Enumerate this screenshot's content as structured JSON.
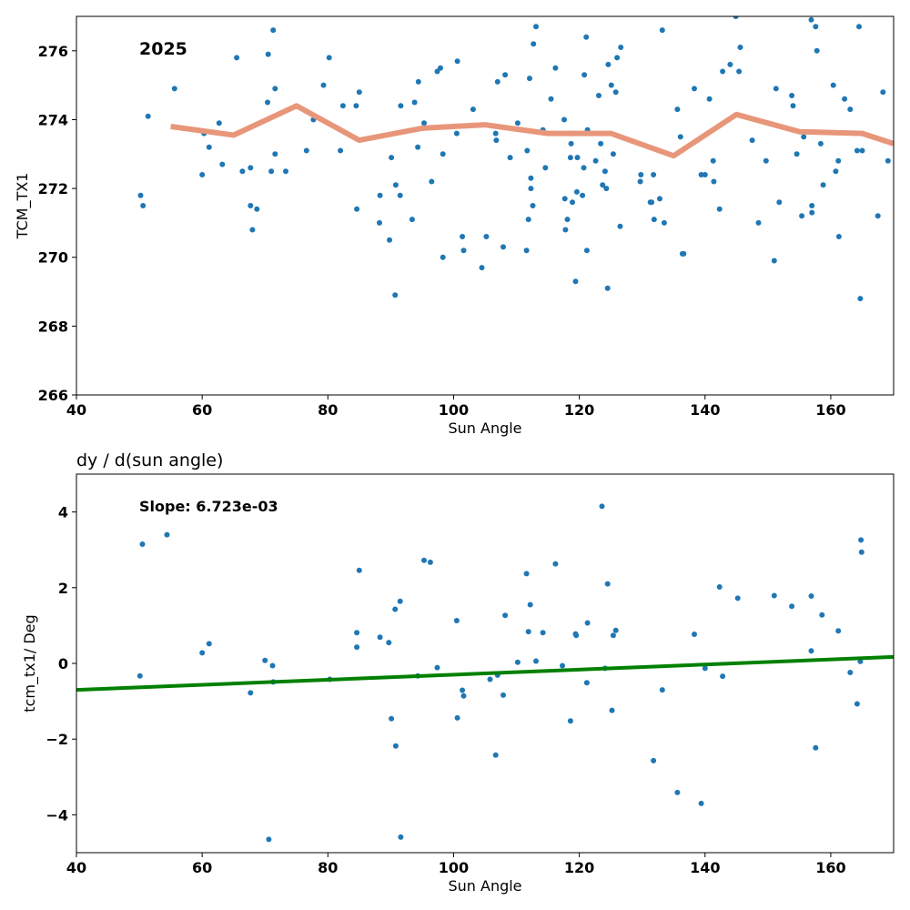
{
  "chart_data": [
    {
      "type": "scatter",
      "title": "",
      "annotation": "2025",
      "xlabel": "Sun Angle",
      "ylabel": "TCM_TX1",
      "xlim": [
        40,
        170
      ],
      "ylim": [
        266,
        277
      ],
      "xticks": [
        40,
        60,
        80,
        100,
        120,
        140,
        160
      ],
      "yticks": [
        266,
        268,
        270,
        272,
        274,
        276
      ],
      "grid": false,
      "colors": {
        "points": "#1f77b4",
        "line": "#e8967a"
      },
      "series": [
        {
          "kind": "scatter",
          "points": [
            [
              50.2,
              271.8
            ],
            [
              50.6,
              271.5
            ],
            [
              51.4,
              274.1
            ],
            [
              55.6,
              274.9
            ],
            [
              60.0,
              272.4
            ],
            [
              60.3,
              273.6
            ],
            [
              61.1,
              273.2
            ],
            [
              62.7,
              273.9
            ],
            [
              63.2,
              272.7
            ],
            [
              65.5,
              275.8
            ],
            [
              66.4,
              272.5
            ],
            [
              67.7,
              272.6
            ],
            [
              67.7,
              271.5
            ],
            [
              68.0,
              270.8
            ],
            [
              68.7,
              271.4
            ],
            [
              70.4,
              274.5
            ],
            [
              70.5,
              275.9
            ],
            [
              71.0,
              272.5
            ],
            [
              71.3,
              276.6
            ],
            [
              71.6,
              274.9
            ],
            [
              71.6,
              273.0
            ],
            [
              73.3,
              272.5
            ],
            [
              76.6,
              273.1
            ],
            [
              77.7,
              274.0
            ],
            [
              79.3,
              275.0
            ],
            [
              80.2,
              275.8
            ],
            [
              82.0,
              273.1
            ],
            [
              82.4,
              274.4
            ],
            [
              84.5,
              274.4
            ],
            [
              84.6,
              271.4
            ],
            [
              85.0,
              274.8
            ],
            [
              88.2,
              271.0
            ],
            [
              88.3,
              271.8
            ],
            [
              89.8,
              270.5
            ],
            [
              90.1,
              272.9
            ],
            [
              90.7,
              268.9
            ],
            [
              90.8,
              272.1
            ],
            [
              91.5,
              271.8
            ],
            [
              91.6,
              274.4
            ],
            [
              93.4,
              271.1
            ],
            [
              93.8,
              274.5
            ],
            [
              94.3,
              273.2
            ],
            [
              94.4,
              275.1
            ],
            [
              95.3,
              273.9
            ],
            [
              96.5,
              272.2
            ],
            [
              97.4,
              275.4
            ],
            [
              97.9,
              275.5
            ],
            [
              98.3,
              270.0
            ],
            [
              98.3,
              273.0
            ],
            [
              100.5,
              273.6
            ],
            [
              100.6,
              275.7
            ],
            [
              101.4,
              270.6
            ],
            [
              101.6,
              270.2
            ],
            [
              103.1,
              274.3
            ],
            [
              104.5,
              269.7
            ],
            [
              105.2,
              270.6
            ],
            [
              106.7,
              273.6
            ],
            [
              106.8,
              273.4
            ],
            [
              107.0,
              275.1
            ],
            [
              107.9,
              270.3
            ],
            [
              108.2,
              275.3
            ],
            [
              109.0,
              272.9
            ],
            [
              110.2,
              273.9
            ],
            [
              111.6,
              270.2
            ],
            [
              111.7,
              273.1
            ],
            [
              111.9,
              271.1
            ],
            [
              112.1,
              275.2
            ],
            [
              112.3,
              272.0
            ],
            [
              112.3,
              272.3
            ],
            [
              112.6,
              271.5
            ],
            [
              112.7,
              276.2
            ],
            [
              113.1,
              276.7
            ],
            [
              114.2,
              273.7
            ],
            [
              114.6,
              272.6
            ],
            [
              115.5,
              274.6
            ],
            [
              116.2,
              275.5
            ],
            [
              117.6,
              274.0
            ],
            [
              117.7,
              271.7
            ],
            [
              117.8,
              270.8
            ],
            [
              118.1,
              271.1
            ],
            [
              118.5,
              273.6
            ],
            [
              118.6,
              272.9
            ],
            [
              118.7,
              273.3
            ],
            [
              118.9,
              271.6
            ],
            [
              119.4,
              269.3
            ],
            [
              119.6,
              271.9
            ],
            [
              119.7,
              272.9
            ],
            [
              120.5,
              271.8
            ],
            [
              120.7,
              272.6
            ],
            [
              120.8,
              275.3
            ],
            [
              121.1,
              276.4
            ],
            [
              121.2,
              270.2
            ],
            [
              121.3,
              273.7
            ],
            [
              122.6,
              272.8
            ],
            [
              123.1,
              274.7
            ],
            [
              123.4,
              273.3
            ],
            [
              123.7,
              272.1
            ],
            [
              124.1,
              272.5
            ],
            [
              124.3,
              272.0
            ],
            [
              124.5,
              269.1
            ],
            [
              124.6,
              275.6
            ],
            [
              125.1,
              275.0
            ],
            [
              125.4,
              273.0
            ],
            [
              125.8,
              274.8
            ],
            [
              126.0,
              275.8
            ],
            [
              126.5,
              270.9
            ],
            [
              126.6,
              276.1
            ],
            [
              129.7,
              272.2
            ],
            [
              129.8,
              272.4
            ],
            [
              131.3,
              271.6
            ],
            [
              131.5,
              271.6
            ],
            [
              131.8,
              272.4
            ],
            [
              131.9,
              271.1
            ],
            [
              132.8,
              271.7
            ],
            [
              133.2,
              276.6
            ],
            [
              133.5,
              271.0
            ],
            [
              135.6,
              274.3
            ],
            [
              136.1,
              273.5
            ],
            [
              136.4,
              270.1
            ],
            [
              136.6,
              270.1
            ],
            [
              138.3,
              274.9
            ],
            [
              139.4,
              272.4
            ],
            [
              140.0,
              272.4
            ],
            [
              140.7,
              274.6
            ],
            [
              141.3,
              272.8
            ],
            [
              141.4,
              272.2
            ],
            [
              142.3,
              271.4
            ],
            [
              142.8,
              275.4
            ],
            [
              144.0,
              275.6
            ],
            [
              144.9,
              277.0
            ],
            [
              145.4,
              275.4
            ],
            [
              145.6,
              276.1
            ],
            [
              147.5,
              273.4
            ],
            [
              148.5,
              271.0
            ],
            [
              149.7,
              272.8
            ],
            [
              151.0,
              269.9
            ],
            [
              151.3,
              274.9
            ],
            [
              151.8,
              271.6
            ],
            [
              153.8,
              274.7
            ],
            [
              154.0,
              274.4
            ],
            [
              154.6,
              273.0
            ],
            [
              155.4,
              271.2
            ],
            [
              155.7,
              273.5
            ],
            [
              156.9,
              276.9
            ],
            [
              157.0,
              271.3
            ],
            [
              157.0,
              271.5
            ],
            [
              157.6,
              276.7
            ],
            [
              157.8,
              276.0
            ],
            [
              158.4,
              273.3
            ],
            [
              158.8,
              272.1
            ],
            [
              160.4,
              275.0
            ],
            [
              160.8,
              272.5
            ],
            [
              161.2,
              272.8
            ],
            [
              161.3,
              270.6
            ],
            [
              162.2,
              274.6
            ],
            [
              163.1,
              274.3
            ],
            [
              164.2,
              273.1
            ],
            [
              164.5,
              276.7
            ],
            [
              164.7,
              268.8
            ],
            [
              165.0,
              273.1
            ],
            [
              167.5,
              271.2
            ],
            [
              168.3,
              274.8
            ],
            [
              169.1,
              272.8
            ]
          ]
        },
        {
          "kind": "line",
          "points": [
            [
              55,
              273.8
            ],
            [
              65,
              273.55
            ],
            [
              75,
              274.4
            ],
            [
              85,
              273.4
            ],
            [
              95,
              273.75
            ],
            [
              105,
              273.85
            ],
            [
              115,
              273.6
            ],
            [
              125,
              273.6
            ],
            [
              135,
              272.95
            ],
            [
              145,
              274.15
            ],
            [
              155,
              273.65
            ],
            [
              165,
              273.6
            ],
            [
              170,
              273.3
            ]
          ]
        }
      ]
    },
    {
      "type": "scatter",
      "title": "dy / d(sun angle)",
      "annotation": "Slope: 6.723e-03",
      "xlabel": "Sun Angle",
      "ylabel": "tcm_tx1/ Deg",
      "xlim": [
        40,
        170
      ],
      "ylim": [
        -5,
        5
      ],
      "xticks": [
        40,
        60,
        80,
        100,
        120,
        140,
        160
      ],
      "yticks": [
        -4,
        -2,
        0,
        2,
        4
      ],
      "ytick_labels": [
        "−4",
        "−2",
        "0",
        "2",
        "4"
      ],
      "grid": false,
      "colors": {
        "points": "#1f77b4",
        "line": "#008000"
      },
      "fit_line": {
        "slope": 0.006723,
        "points": [
          [
            40,
            -0.7
          ],
          [
            170,
            0.17
          ]
        ]
      },
      "series": [
        {
          "kind": "scatter",
          "points": [
            [
              50.1,
              -0.33
            ],
            [
              50.5,
              3.15
            ],
            [
              54.4,
              3.4
            ],
            [
              60.0,
              0.28
            ],
            [
              61.1,
              0.52
            ],
            [
              67.7,
              -0.78
            ],
            [
              70.0,
              0.08
            ],
            [
              70.6,
              -4.65
            ],
            [
              71.2,
              -0.06
            ],
            [
              71.3,
              -0.49
            ],
            [
              80.3,
              -0.42
            ],
            [
              84.6,
              0.81
            ],
            [
              84.6,
              0.43
            ],
            [
              85.0,
              2.46
            ],
            [
              88.3,
              0.69
            ],
            [
              89.7,
              0.55
            ],
            [
              90.1,
              -1.46
            ],
            [
              90.7,
              1.43
            ],
            [
              90.8,
              -2.18
            ],
            [
              91.5,
              1.64
            ],
            [
              91.6,
              -4.59
            ],
            [
              94.3,
              -0.33
            ],
            [
              95.3,
              2.72
            ],
            [
              96.3,
              2.67
            ],
            [
              97.4,
              -0.11
            ],
            [
              100.5,
              1.13
            ],
            [
              100.6,
              -1.44
            ],
            [
              101.4,
              -0.71
            ],
            [
              101.6,
              -0.86
            ],
            [
              105.8,
              -0.42
            ],
            [
              106.7,
              -2.42
            ],
            [
              107.0,
              -0.31
            ],
            [
              107.9,
              -0.84
            ],
            [
              108.2,
              1.27
            ],
            [
              110.2,
              0.03
            ],
            [
              111.6,
              2.37
            ],
            [
              111.9,
              0.84
            ],
            [
              112.2,
              1.55
            ],
            [
              113.1,
              0.06
            ],
            [
              114.2,
              0.81
            ],
            [
              116.2,
              2.63
            ],
            [
              117.3,
              -0.06
            ],
            [
              118.6,
              -1.52
            ],
            [
              119.4,
              0.78
            ],
            [
              119.5,
              0.74
            ],
            [
              121.2,
              -0.51
            ],
            [
              121.3,
              1.07
            ],
            [
              123.6,
              4.15
            ],
            [
              124.1,
              -0.13
            ],
            [
              124.5,
              2.1
            ],
            [
              125.2,
              -1.24
            ],
            [
              125.4,
              0.74
            ],
            [
              125.8,
              0.87
            ],
            [
              131.8,
              -2.57
            ],
            [
              133.2,
              -0.7
            ],
            [
              135.6,
              -3.41
            ],
            [
              138.3,
              0.77
            ],
            [
              139.4,
              -3.7
            ],
            [
              140.0,
              -0.13
            ],
            [
              142.3,
              2.02
            ],
            [
              142.8,
              -0.34
            ],
            [
              145.2,
              1.72
            ],
            [
              151.0,
              1.79
            ],
            [
              153.8,
              1.51
            ],
            [
              156.9,
              1.78
            ],
            [
              156.9,
              0.33
            ],
            [
              157.6,
              -2.23
            ],
            [
              158.6,
              1.28
            ],
            [
              161.2,
              0.86
            ],
            [
              163.1,
              -0.24
            ],
            [
              164.2,
              -1.07
            ],
            [
              164.7,
              0.05
            ],
            [
              164.8,
              3.26
            ],
            [
              164.9,
              2.94
            ]
          ]
        }
      ]
    }
  ]
}
